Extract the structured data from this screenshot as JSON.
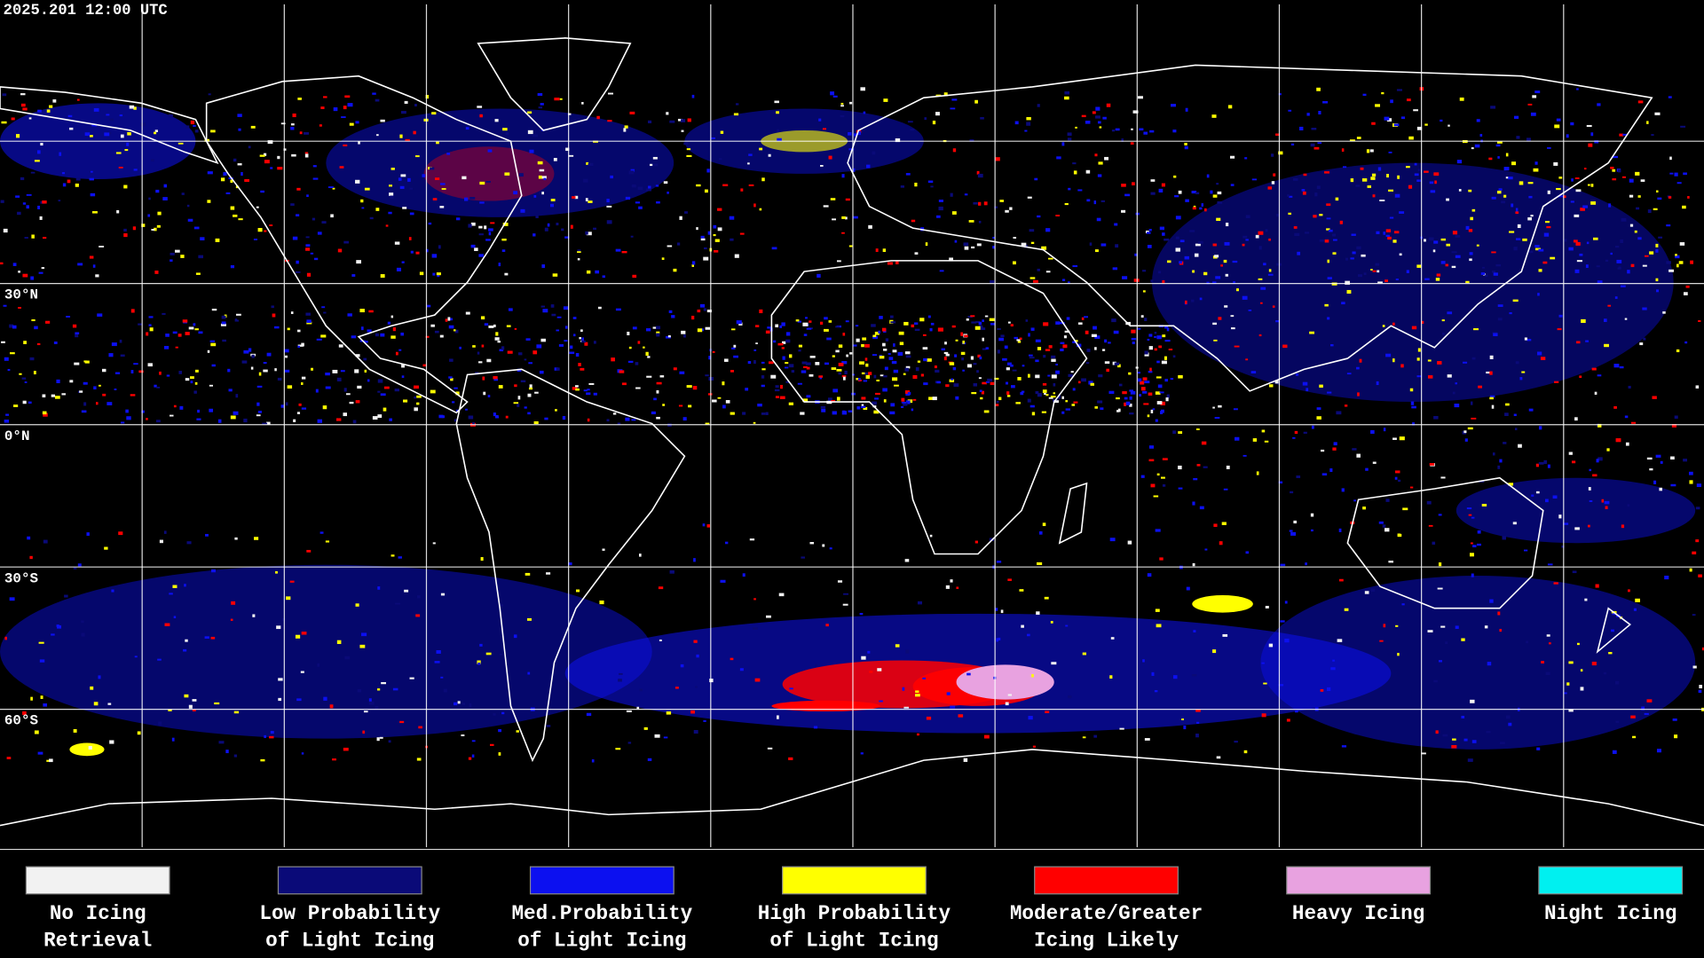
{
  "header": {
    "timestamp": "2025.201 12:00 UTC"
  },
  "map": {
    "latitude_labels": [
      "30°N",
      "0°N",
      "30°S",
      "60°S"
    ]
  },
  "legend": {
    "items": [
      {
        "color": "#f2f2f2",
        "label_lines": [
          "No Icing",
          "Retrieval"
        ]
      },
      {
        "color": "#0a0a78",
        "label_lines": [
          "Low Probability",
          "of Light Icing"
        ]
      },
      {
        "color": "#0c10f0",
        "label_lines": [
          "Med.Probability",
          "of Light Icing"
        ]
      },
      {
        "color": "#ffff00",
        "label_lines": [
          "High Probability",
          "of Light Icing"
        ]
      },
      {
        "color": "#ff0000",
        "label_lines": [
          "Moderate/Greater",
          "Icing Likely"
        ]
      },
      {
        "color": "#e8a2e0",
        "label_lines": [
          "Heavy Icing"
        ]
      },
      {
        "color": "#00f0f0",
        "label_lines": [
          "Night Icing"
        ]
      }
    ]
  }
}
